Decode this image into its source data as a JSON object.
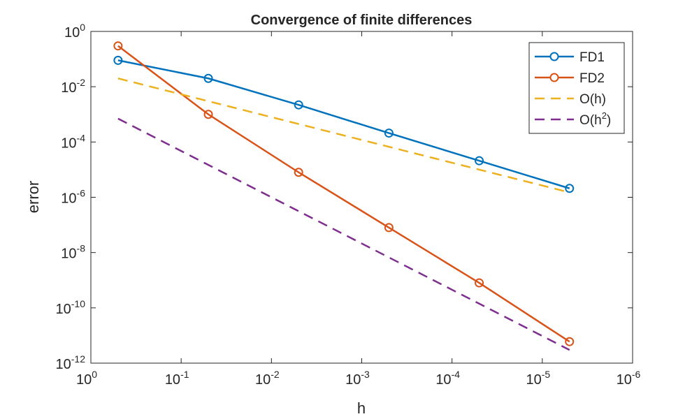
{
  "chart_data": {
    "type": "line",
    "title": "Convergence of finite differences",
    "xlabel": "h",
    "ylabel": "error",
    "xscale": "log",
    "yscale": "log",
    "x_reversed": true,
    "xlim": [
      1,
      1e-06
    ],
    "ylim": [
      1e-12,
      1
    ],
    "xticks": [
      {
        "value": 1,
        "base": "10",
        "exp": "0"
      },
      {
        "value": 0.1,
        "base": "10",
        "exp": "-1"
      },
      {
        "value": 0.01,
        "base": "10",
        "exp": "-2"
      },
      {
        "value": 0.001,
        "base": "10",
        "exp": "-3"
      },
      {
        "value": 0.0001,
        "base": "10",
        "exp": "-4"
      },
      {
        "value": 1e-05,
        "base": "10",
        "exp": "-5"
      },
      {
        "value": 1e-06,
        "base": "10",
        "exp": "-6"
      }
    ],
    "yticks": [
      {
        "value": 1,
        "base": "10",
        "exp": "0"
      },
      {
        "value": 0.01,
        "base": "10",
        "exp": "-2"
      },
      {
        "value": 0.0001,
        "base": "10",
        "exp": "-4"
      },
      {
        "value": 1e-06,
        "base": "10",
        "exp": "-6"
      },
      {
        "value": 1e-08,
        "base": "10",
        "exp": "-8"
      },
      {
        "value": 1e-10,
        "base": "10",
        "exp": "-10"
      },
      {
        "value": 1e-12,
        "base": "10",
        "exp": "-12"
      }
    ],
    "grid": false,
    "legend_position": "top-right",
    "series": [
      {
        "name": "FD1",
        "legend_base": "FD1",
        "legend_sup": "",
        "legend_tail": "",
        "color": "#0072BD",
        "style": "solid",
        "marker": "circle",
        "x": [
          0.5,
          0.05,
          0.005,
          0.0005,
          5e-05,
          5e-06
        ],
        "y": [
          0.09,
          0.02,
          0.0022,
          0.00021,
          2.1e-05,
          2.1e-06
        ]
      },
      {
        "name": "FD2",
        "legend_base": "FD2",
        "legend_sup": "",
        "legend_tail": "",
        "color": "#D95319",
        "style": "solid",
        "marker": "circle",
        "x": [
          0.5,
          0.05,
          0.005,
          0.0005,
          5e-05,
          5e-06
        ],
        "y": [
          0.3,
          0.001,
          8e-06,
          8e-08,
          8e-10,
          6e-12
        ]
      },
      {
        "name": "O(h)",
        "legend_base": "O(h)",
        "legend_sup": "",
        "legend_tail": "",
        "color": "#EDB120",
        "style": "dashed",
        "marker": "none",
        "x": [
          0.5,
          5e-06
        ],
        "y": [
          0.02,
          1.5e-06
        ]
      },
      {
        "name": "O(h^2)",
        "legend_base": "O(h",
        "legend_sup": "2",
        "legend_tail": ")",
        "color": "#7E2F8E",
        "style": "dashed",
        "marker": "none",
        "x": [
          0.5,
          5e-06
        ],
        "y": [
          0.0007,
          3e-12
        ]
      }
    ]
  }
}
